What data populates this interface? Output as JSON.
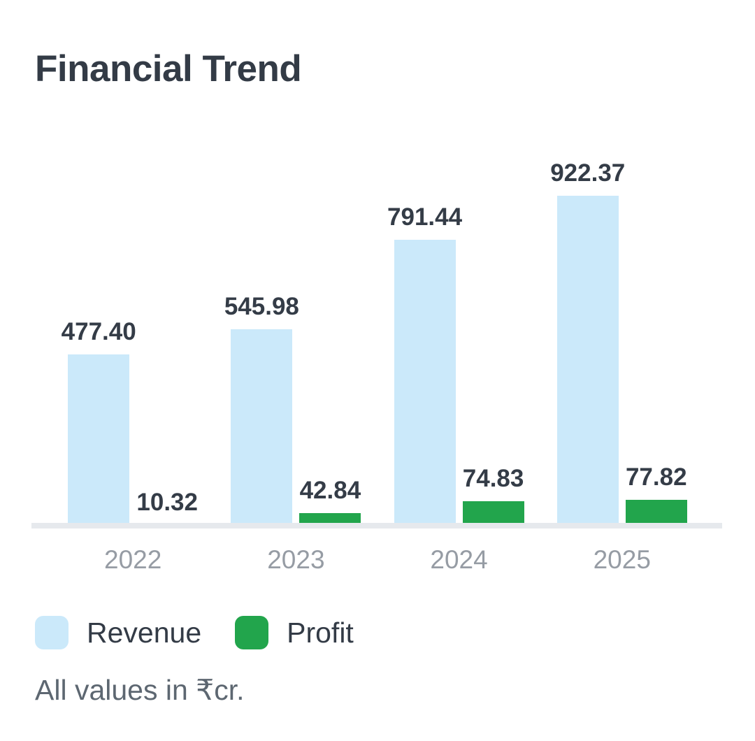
{
  "title": "Financial Trend",
  "footer_note": "All values in ₹cr.",
  "colors": {
    "revenue": "#cbe9fa",
    "profit": "#22a54c",
    "axis_line": "#e6e9ed",
    "title_text": "#333b46",
    "value_label": "#343c47",
    "year_label": "#969ca4",
    "legend_text": "#333b46",
    "footer_text": "#5d6771"
  },
  "legend": {
    "revenue_label": "Revenue",
    "profit_label": "Profit"
  },
  "chart_data": {
    "type": "bar",
    "title": "Financial Trend",
    "unit": "₹cr.",
    "categories": [
      "2022",
      "2023",
      "2024",
      "2025"
    ],
    "series": [
      {
        "name": "Revenue",
        "values": [
          477.4,
          545.98,
          791.44,
          922.37
        ],
        "labels": [
          "477.40",
          "545.98",
          "791.44",
          "922.37"
        ],
        "color": "#cbe9fa"
      },
      {
        "name": "Profit",
        "values": [
          10.32,
          42.84,
          74.83,
          77.82
        ],
        "labels": [
          "10.32",
          "42.84",
          "74.83",
          "77.82"
        ],
        "color": "#22a54c"
      }
    ],
    "ylim": [
      0,
      960
    ],
    "grid": false,
    "value_labels_shown": true,
    "legend_position": "bottom",
    "note": "2022 profit bar (10.32) is visually hidden beneath the baseline strip"
  }
}
